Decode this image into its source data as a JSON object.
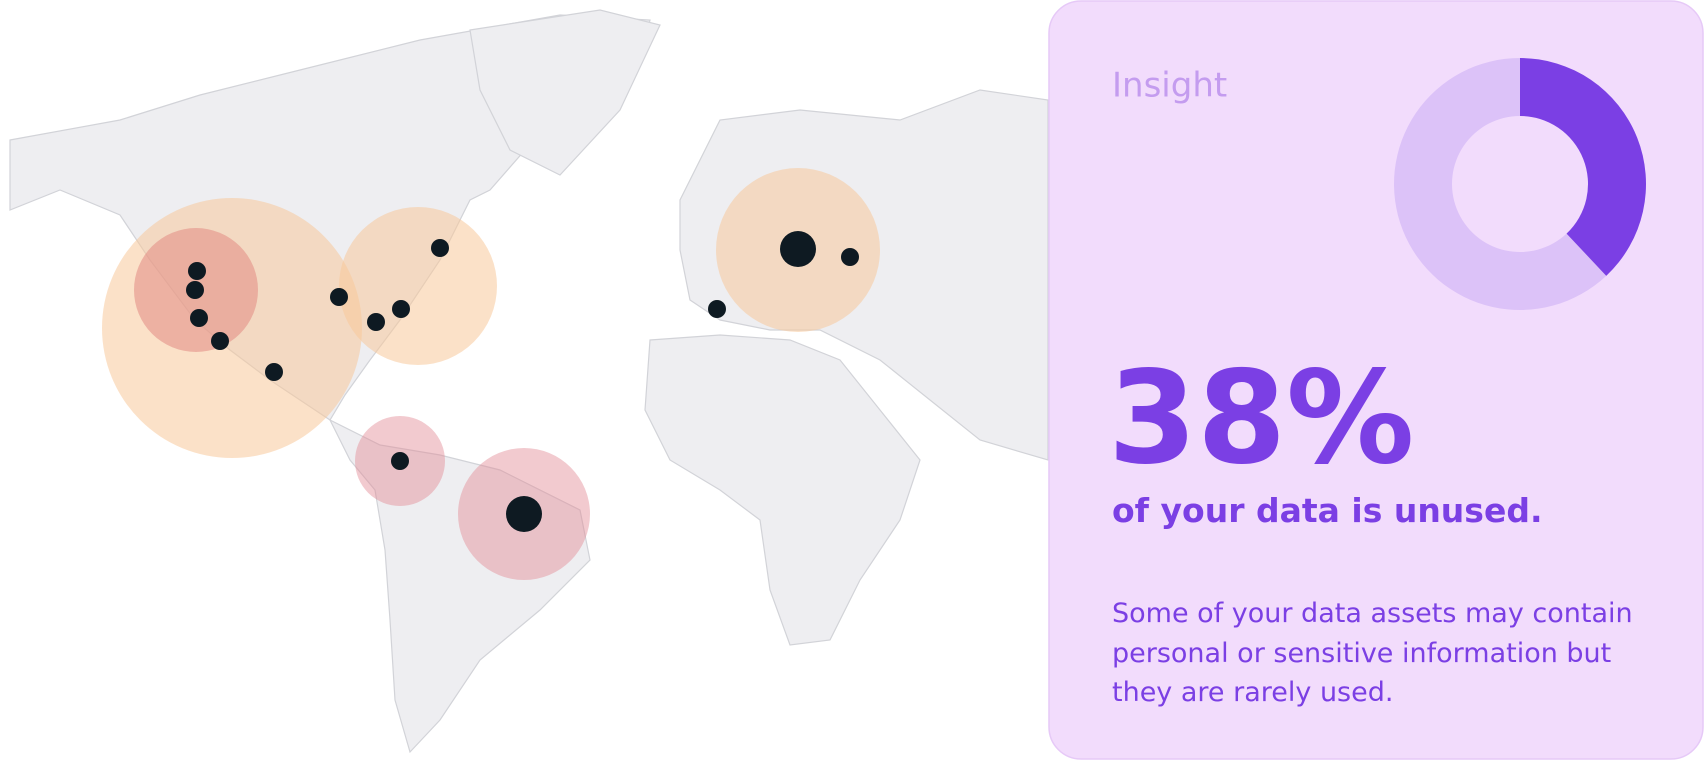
{
  "card": {
    "heading": "Insight",
    "stat": {
      "value": 38,
      "label": "38%"
    },
    "subtitle": "of your data is unused.",
    "description": [
      "Some of your data assets may contain",
      "personal or sensitive information but",
      "they are rarely used."
    ]
  }
}
